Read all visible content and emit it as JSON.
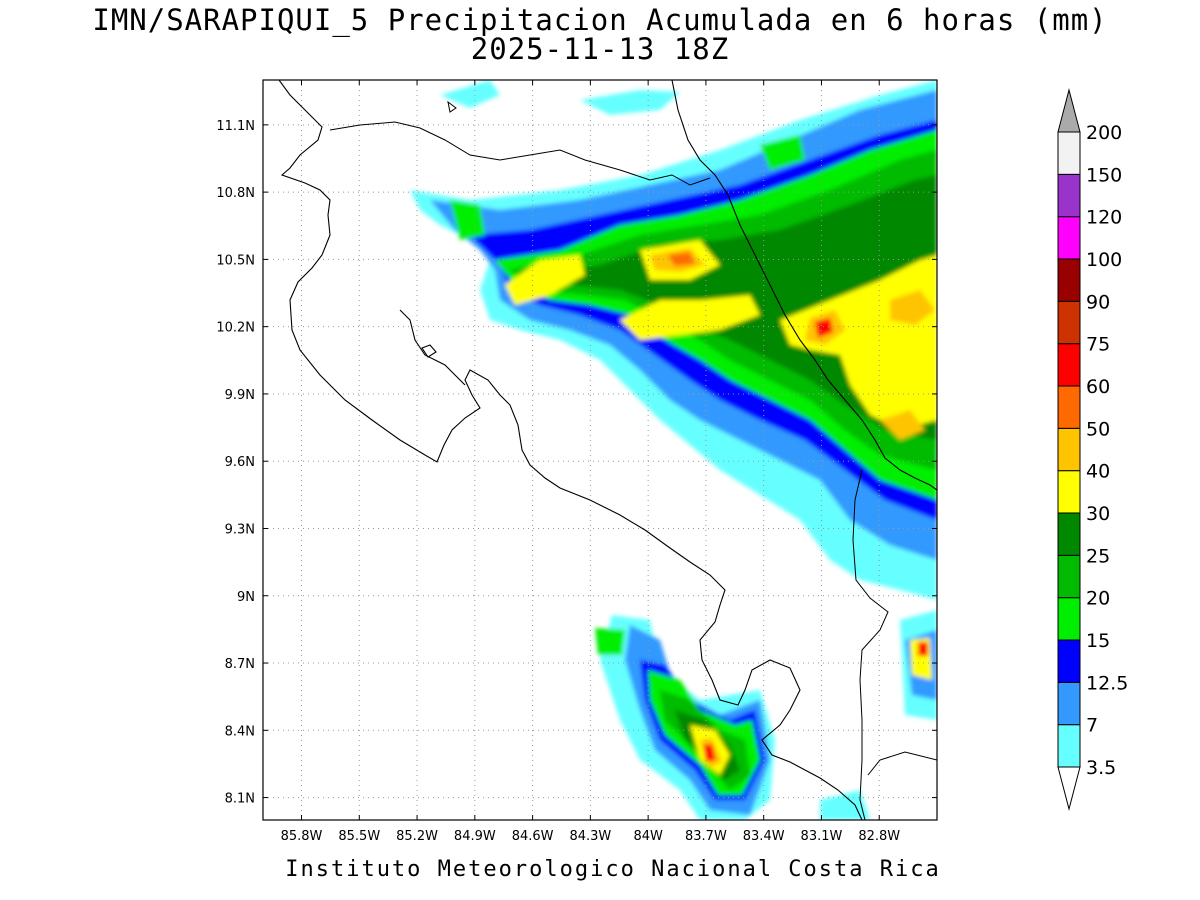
{
  "title": {
    "line1": "IMN/SARAPIQUI_5 Precipitacion Acumulada en 6 horas (mm)",
    "line2": "2025-11-13 18Z"
  },
  "footer": "Instituto Meteorologico Nacional Costa Rica",
  "map": {
    "lon_range": [
      -86.0,
      -82.5
    ],
    "lat_range": [
      8.0,
      11.3
    ],
    "lon_ticks": [
      {
        "v": -85.8,
        "label": "85.8W"
      },
      {
        "v": -85.5,
        "label": "85.5W"
      },
      {
        "v": -85.2,
        "label": "85.2W"
      },
      {
        "v": -84.9,
        "label": "84.9W"
      },
      {
        "v": -84.6,
        "label": "84.6W"
      },
      {
        "v": -84.3,
        "label": "84.3W"
      },
      {
        "v": -84.0,
        "label": "84W"
      },
      {
        "v": -83.7,
        "label": "83.7W"
      },
      {
        "v": -83.4,
        "label": "83.4W"
      },
      {
        "v": -83.1,
        "label": "83.1W"
      },
      {
        "v": -82.8,
        "label": "82.8W"
      }
    ],
    "lat_ticks": [
      {
        "v": 8.1,
        "label": "8.1N"
      },
      {
        "v": 8.4,
        "label": "8.4N"
      },
      {
        "v": 8.7,
        "label": "8.7N"
      },
      {
        "v": 9.0,
        "label": "9N"
      },
      {
        "v": 9.3,
        "label": "9.3N"
      },
      {
        "v": 9.6,
        "label": "9.6N"
      },
      {
        "v": 9.9,
        "label": "9.9N"
      },
      {
        "v": 10.2,
        "label": "10.2N"
      },
      {
        "v": 10.5,
        "label": "10.5N"
      },
      {
        "v": 10.8,
        "label": "10.8N"
      },
      {
        "v": 11.1,
        "label": "11.1N"
      }
    ]
  },
  "colorbar": {
    "levels": [
      {
        "label": "3.5",
        "color": "#ffffff"
      },
      {
        "label": "7",
        "color": "#66ffff"
      },
      {
        "label": "12.5",
        "color": "#3399ff"
      },
      {
        "label": "15",
        "color": "#0000ff"
      },
      {
        "label": "20",
        "color": "#00ee00"
      },
      {
        "label": "25",
        "color": "#00bb00"
      },
      {
        "label": "30",
        "color": "#008800"
      },
      {
        "label": "40",
        "color": "#ffff00"
      },
      {
        "label": "50",
        "color": "#ffc400"
      },
      {
        "label": "60",
        "color": "#ff6a00"
      },
      {
        "label": "75",
        "color": "#ff0000"
      },
      {
        "label": "90",
        "color": "#cc3300"
      },
      {
        "label": "100",
        "color": "#990000"
      },
      {
        "label": "120",
        "color": "#ff00ff"
      },
      {
        "label": "150",
        "color": "#9933cc"
      },
      {
        "label": "200",
        "color": "#f2f2f2"
      }
    ],
    "top_arrow_color": "#aaaaaa",
    "bottom_arrow_color": "#ffffff"
  }
}
